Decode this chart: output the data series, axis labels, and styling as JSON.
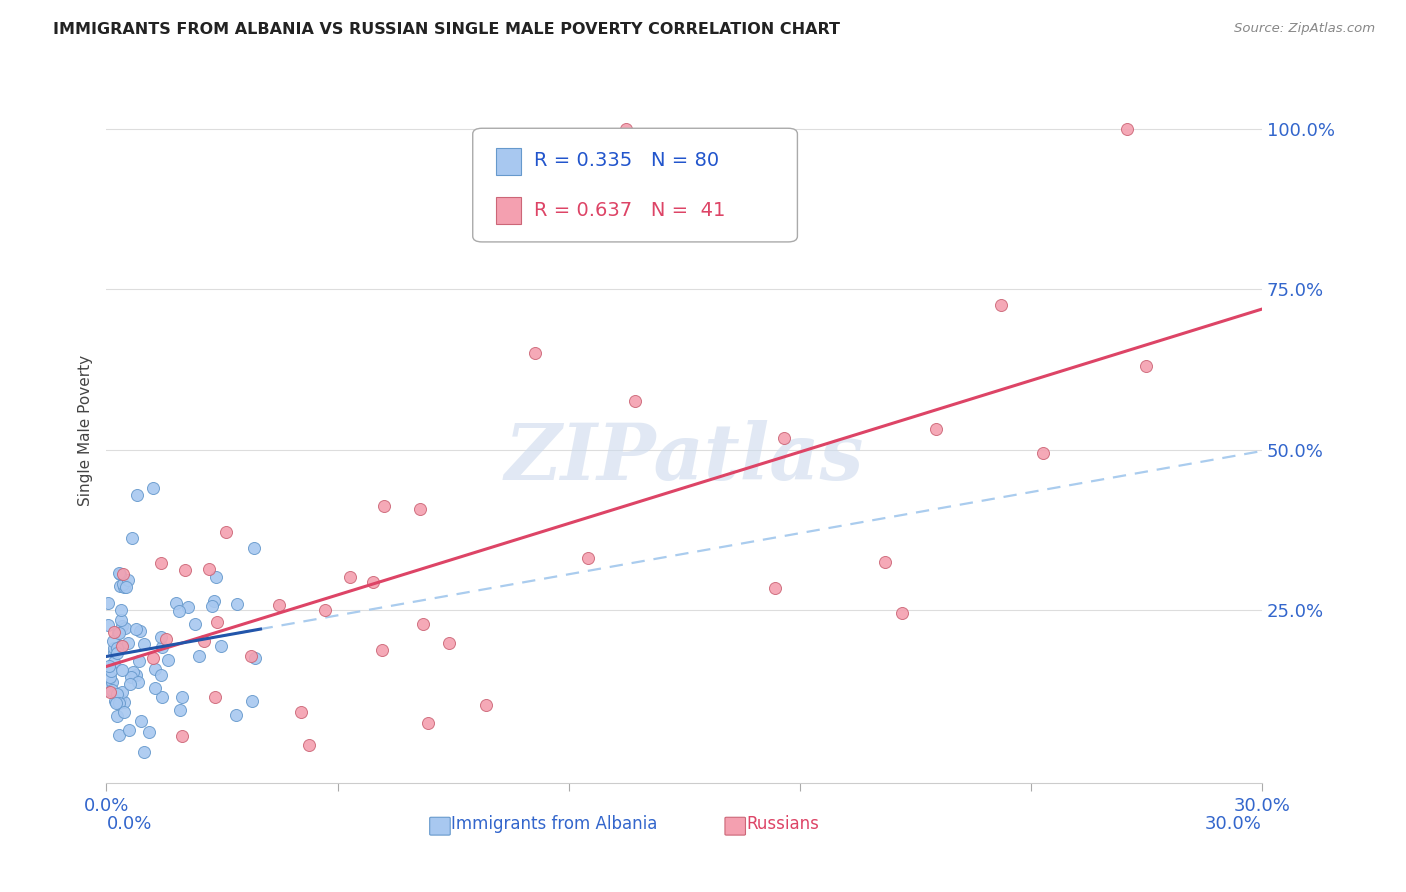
{
  "title": "IMMIGRANTS FROM ALBANIA VS RUSSIAN SINGLE MALE POVERTY CORRELATION CHART",
  "source": "Source: ZipAtlas.com",
  "ylabel": "Single Male Poverty",
  "xlim": [
    0.0,
    0.3
  ],
  "ylim": [
    -0.02,
    1.08
  ],
  "albania_color": "#a8c8f0",
  "albania_edge_color": "#6699cc",
  "russia_color": "#f4a0b0",
  "russia_edge_color": "#cc6677",
  "albania_line_color": "#2255aa",
  "russia_line_color": "#dd4466",
  "dashed_line_color": "#aaccee",
  "watermark_color": "#cddaed",
  "title_color": "#222222",
  "source_color": "#888888",
  "tick_color": "#3366cc",
  "ylabel_color": "#444444",
  "grid_color": "#dddddd",
  "legend_edge_color": "#aaaaaa",
  "legend_text_blue": "#2255cc",
  "legend_text_pink": "#dd4466"
}
